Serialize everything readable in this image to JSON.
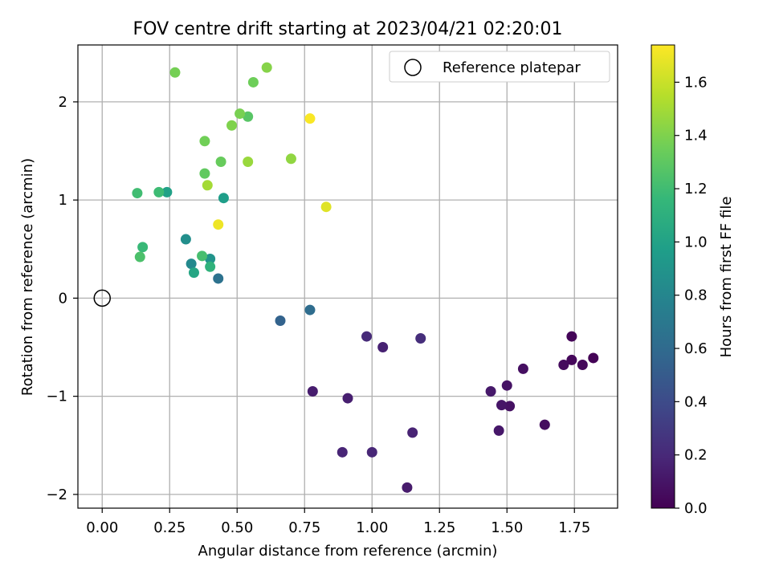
{
  "chart_data": {
    "type": "scatter",
    "title": "FOV centre drift starting at 2023/04/21 02:20:01",
    "xlabel": "Angular distance from reference (arcmin)",
    "ylabel": "Rotation from reference (arcmin)",
    "colorbar_label": "Hours from first FF file",
    "xlim": [
      -0.09,
      1.91
    ],
    "ylim": [
      -2.14,
      2.58
    ],
    "clim": [
      0.0,
      1.74
    ],
    "colormap": "viridis",
    "grid": true,
    "legend_position": "top-right",
    "xticks": [
      "0.00",
      "0.25",
      "0.50",
      "0.75",
      "1.00",
      "1.25",
      "1.50",
      "1.75"
    ],
    "xtick_values": [
      0,
      0.25,
      0.5,
      0.75,
      1.0,
      1.25,
      1.5,
      1.75
    ],
    "yticks": [
      "−2",
      "−1",
      "0",
      "1",
      "2"
    ],
    "ytick_values": [
      -2,
      -1,
      0,
      1,
      2
    ],
    "cticks": [
      "0.0",
      "0.2",
      "0.4",
      "0.6",
      "0.8",
      "1.0",
      "1.2",
      "1.4",
      "1.6"
    ],
    "ctick_values": [
      0.0,
      0.2,
      0.4,
      0.6,
      0.8,
      1.0,
      1.2,
      1.4,
      1.6
    ],
    "reference": {
      "label": "Reference platepar",
      "x": 0,
      "y": 0
    },
    "points": [
      {
        "x": 1.82,
        "y": -0.61,
        "c": 0.01
      },
      {
        "x": 1.74,
        "y": -0.39,
        "c": 0.02
      },
      {
        "x": 1.74,
        "y": -0.63,
        "c": 0.03
      },
      {
        "x": 1.78,
        "y": -0.68,
        "c": 0.04
      },
      {
        "x": 1.71,
        "y": -0.68,
        "c": 0.05
      },
      {
        "x": 1.64,
        "y": -1.29,
        "c": 0.06
      },
      {
        "x": 1.56,
        "y": -0.72,
        "c": 0.07
      },
      {
        "x": 1.51,
        "y": -1.1,
        "c": 0.08
      },
      {
        "x": 1.5,
        "y": -0.89,
        "c": 0.09
      },
      {
        "x": 1.48,
        "y": -1.09,
        "c": 0.1
      },
      {
        "x": 1.47,
        "y": -1.35,
        "c": 0.11
      },
      {
        "x": 1.44,
        "y": -0.95,
        "c": 0.12
      },
      {
        "x": 1.13,
        "y": -1.93,
        "c": 0.13
      },
      {
        "x": 0.78,
        "y": -0.95,
        "c": 0.14
      },
      {
        "x": 0.91,
        "y": -1.02,
        "c": 0.15
      },
      {
        "x": 1.04,
        "y": -0.5,
        "c": 0.16
      },
      {
        "x": 1.15,
        "y": -1.37,
        "c": 0.17
      },
      {
        "x": 0.89,
        "y": -1.57,
        "c": 0.18
      },
      {
        "x": 1.0,
        "y": -1.57,
        "c": 0.19
      },
      {
        "x": 0.98,
        "y": -0.39,
        "c": 0.21
      },
      {
        "x": 1.18,
        "y": -0.41,
        "c": 0.23
      },
      {
        "x": 0.66,
        "y": -0.23,
        "c": 0.55
      },
      {
        "x": 0.77,
        "y": -0.12,
        "c": 0.62
      },
      {
        "x": 0.43,
        "y": 0.2,
        "c": 0.65
      },
      {
        "x": 0.33,
        "y": 0.35,
        "c": 0.82
      },
      {
        "x": 0.31,
        "y": 0.6,
        "c": 0.86
      },
      {
        "x": 0.4,
        "y": 0.4,
        "c": 0.9
      },
      {
        "x": 0.45,
        "y": 1.02,
        "c": 0.97
      },
      {
        "x": 0.24,
        "y": 1.08,
        "c": 0.99
      },
      {
        "x": 0.34,
        "y": 0.26,
        "c": 1.03
      },
      {
        "x": 0.4,
        "y": 0.32,
        "c": 1.12
      },
      {
        "x": 0.13,
        "y": 1.07,
        "c": 1.2
      },
      {
        "x": 0.21,
        "y": 1.08,
        "c": 1.19
      },
      {
        "x": 0.15,
        "y": 0.52,
        "c": 1.17
      },
      {
        "x": 0.37,
        "y": 0.43,
        "c": 1.22
      },
      {
        "x": 0.14,
        "y": 0.42,
        "c": 1.24
      },
      {
        "x": 0.54,
        "y": 1.85,
        "c": 1.28
      },
      {
        "x": 0.38,
        "y": 1.27,
        "c": 1.31
      },
      {
        "x": 0.44,
        "y": 1.39,
        "c": 1.33
      },
      {
        "x": 0.38,
        "y": 1.6,
        "c": 1.36
      },
      {
        "x": 0.51,
        "y": 1.88,
        "c": 1.38
      },
      {
        "x": 0.48,
        "y": 1.76,
        "c": 1.4
      },
      {
        "x": 0.56,
        "y": 2.2,
        "c": 1.35
      },
      {
        "x": 0.27,
        "y": 2.3,
        "c": 1.37
      },
      {
        "x": 0.61,
        "y": 2.35,
        "c": 1.42
      },
      {
        "x": 0.7,
        "y": 1.42,
        "c": 1.45
      },
      {
        "x": 0.54,
        "y": 1.39,
        "c": 1.47
      },
      {
        "x": 0.39,
        "y": 1.15,
        "c": 1.5
      },
      {
        "x": 0.83,
        "y": 0.93,
        "c": 1.66
      },
      {
        "x": 0.43,
        "y": 0.75,
        "c": 1.7
      },
      {
        "x": 0.77,
        "y": 1.83,
        "c": 1.73
      }
    ]
  }
}
